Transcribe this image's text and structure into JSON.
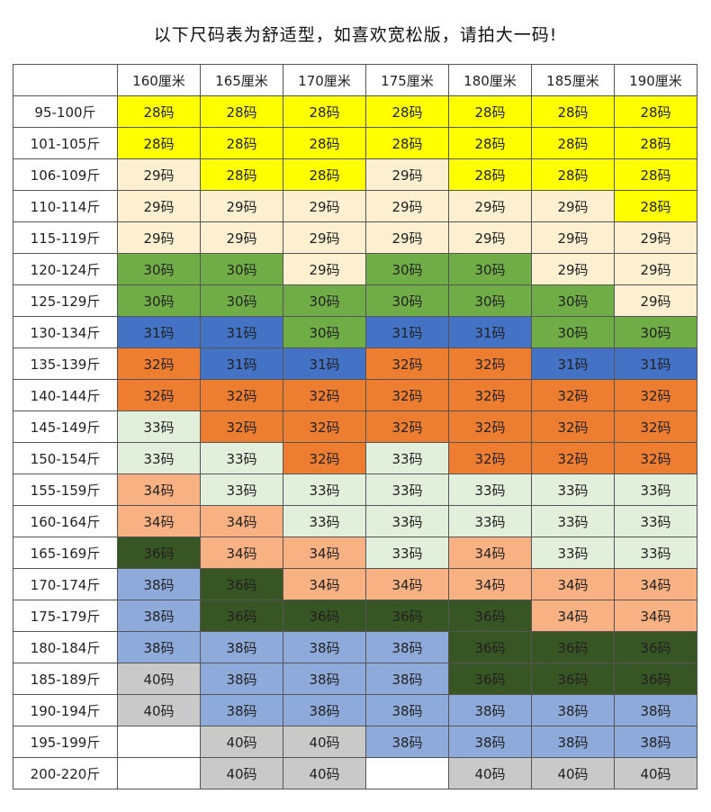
{
  "title": "以下尺码表为舒适型，如喜欢宽松版，请拍大一码!",
  "table": {
    "corner": "",
    "heights": [
      "160厘米",
      "165厘米",
      "170厘米",
      "175厘米",
      "180厘米",
      "185厘米",
      "190厘米"
    ],
    "colors": {
      "Y": "#ffff00",
      "C": "#fdf0d0",
      "G": "#70ad47",
      "B": "#4472c4",
      "O": "#ed7d31",
      "L": "#e2efda",
      "S": "#f8b183",
      "D": "#375623",
      "P": "#8eaadb",
      "R": "#c9c9c9",
      "W": "#ffffff"
    },
    "rows": [
      {
        "weight": "95-100斤",
        "cells": [
          "28码",
          "28码",
          "28码",
          "28码",
          "28码",
          "28码",
          "28码"
        ],
        "fills": [
          "Y",
          "Y",
          "Y",
          "Y",
          "Y",
          "Y",
          "Y"
        ]
      },
      {
        "weight": "101-105斤",
        "cells": [
          "28码",
          "28码",
          "28码",
          "28码",
          "28码",
          "28码",
          "28码"
        ],
        "fills": [
          "Y",
          "Y",
          "Y",
          "Y",
          "Y",
          "Y",
          "Y"
        ]
      },
      {
        "weight": "106-109斤",
        "cells": [
          "29码",
          "28码",
          "28码",
          "29码",
          "28码",
          "28码",
          "28码"
        ],
        "fills": [
          "C",
          "Y",
          "Y",
          "C",
          "Y",
          "Y",
          "Y"
        ]
      },
      {
        "weight": "110-114斤",
        "cells": [
          "29码",
          "29码",
          "29码",
          "29码",
          "29码",
          "29码",
          "28码"
        ],
        "fills": [
          "C",
          "C",
          "C",
          "C",
          "C",
          "C",
          "Y"
        ]
      },
      {
        "weight": "115-119斤",
        "cells": [
          "29码",
          "29码",
          "29码",
          "29码",
          "29码",
          "29码",
          "29码"
        ],
        "fills": [
          "C",
          "C",
          "C",
          "C",
          "C",
          "C",
          "C"
        ]
      },
      {
        "weight": "120-124斤",
        "cells": [
          "30码",
          "30码",
          "29码",
          "30码",
          "30码",
          "29码",
          "29码"
        ],
        "fills": [
          "G",
          "G",
          "C",
          "G",
          "G",
          "C",
          "C"
        ]
      },
      {
        "weight": "125-129斤",
        "cells": [
          "30码",
          "30码",
          "30码",
          "30码",
          "30码",
          "30码",
          "29码"
        ],
        "fills": [
          "G",
          "G",
          "G",
          "G",
          "G",
          "G",
          "C"
        ]
      },
      {
        "weight": "130-134斤",
        "cells": [
          "31码",
          "31码",
          "30码",
          "31码",
          "31码",
          "30码",
          "30码"
        ],
        "fills": [
          "B",
          "B",
          "G",
          "B",
          "B",
          "G",
          "G"
        ]
      },
      {
        "weight": "135-139斤",
        "cells": [
          "32码",
          "31码",
          "31码",
          "32码",
          "32码",
          "31码",
          "31码"
        ],
        "fills": [
          "O",
          "B",
          "B",
          "O",
          "O",
          "B",
          "B"
        ]
      },
      {
        "weight": "140-144斤",
        "cells": [
          "32码",
          "32码",
          "32码",
          "32码",
          "32码",
          "32码",
          "32码"
        ],
        "fills": [
          "O",
          "O",
          "O",
          "O",
          "O",
          "O",
          "O"
        ]
      },
      {
        "weight": "145-149斤",
        "cells": [
          "33码",
          "32码",
          "32码",
          "32码",
          "32码",
          "32码",
          "32码"
        ],
        "fills": [
          "L",
          "O",
          "O",
          "O",
          "O",
          "O",
          "O"
        ]
      },
      {
        "weight": "150-154斤",
        "cells": [
          "33码",
          "33码",
          "32码",
          "33码",
          "32码",
          "32码",
          "32码"
        ],
        "fills": [
          "L",
          "L",
          "O",
          "L",
          "O",
          "O",
          "O"
        ]
      },
      {
        "weight": "155-159斤",
        "cells": [
          "34码",
          "33码",
          "33码",
          "33码",
          "33码",
          "33码",
          "33码"
        ],
        "fills": [
          "S",
          "L",
          "L",
          "L",
          "L",
          "L",
          "L"
        ]
      },
      {
        "weight": "160-164斤",
        "cells": [
          "34码",
          "34码",
          "33码",
          "33码",
          "33码",
          "33码",
          "33码"
        ],
        "fills": [
          "S",
          "S",
          "L",
          "L",
          "L",
          "L",
          "L"
        ]
      },
      {
        "weight": "165-169斤",
        "cells": [
          "36码",
          "34码",
          "34码",
          "33码",
          "34码",
          "33码",
          "33码"
        ],
        "fills": [
          "D",
          "S",
          "S",
          "L",
          "S",
          "L",
          "L"
        ]
      },
      {
        "weight": "170-174斤",
        "cells": [
          "38码",
          "36码",
          "34码",
          "34码",
          "34码",
          "34码",
          "34码"
        ],
        "fills": [
          "P",
          "D",
          "S",
          "S",
          "S",
          "S",
          "S"
        ]
      },
      {
        "weight": "175-179斤",
        "cells": [
          "38码",
          "36码",
          "36码",
          "36码",
          "36码",
          "34码",
          "34码"
        ],
        "fills": [
          "P",
          "D",
          "D",
          "D",
          "D",
          "S",
          "S"
        ]
      },
      {
        "weight": "180-184斤",
        "cells": [
          "38码",
          "38码",
          "38码",
          "38码",
          "36码",
          "36码",
          "36码"
        ],
        "fills": [
          "P",
          "P",
          "P",
          "P",
          "D",
          "D",
          "D"
        ]
      },
      {
        "weight": "185-189斤",
        "cells": [
          "40码",
          "38码",
          "38码",
          "38码",
          "36码",
          "36码",
          "36码"
        ],
        "fills": [
          "R",
          "P",
          "P",
          "P",
          "D",
          "D",
          "D"
        ]
      },
      {
        "weight": "190-194斤",
        "cells": [
          "40码",
          "38码",
          "38码",
          "38码",
          "38码",
          "38码",
          "38码"
        ],
        "fills": [
          "R",
          "P",
          "P",
          "P",
          "P",
          "P",
          "P"
        ]
      },
      {
        "weight": "195-199斤",
        "cells": [
          "",
          "40码",
          "40码",
          "38码",
          "38码",
          "38码",
          "38码"
        ],
        "fills": [
          "W",
          "R",
          "R",
          "P",
          "P",
          "P",
          "P"
        ]
      },
      {
        "weight": "200-220斤",
        "cells": [
          "",
          "40码",
          "40码",
          "",
          "40码",
          "40码",
          "40码"
        ],
        "fills": [
          "W",
          "R",
          "R",
          "W",
          "R",
          "R",
          "R"
        ]
      }
    ]
  }
}
